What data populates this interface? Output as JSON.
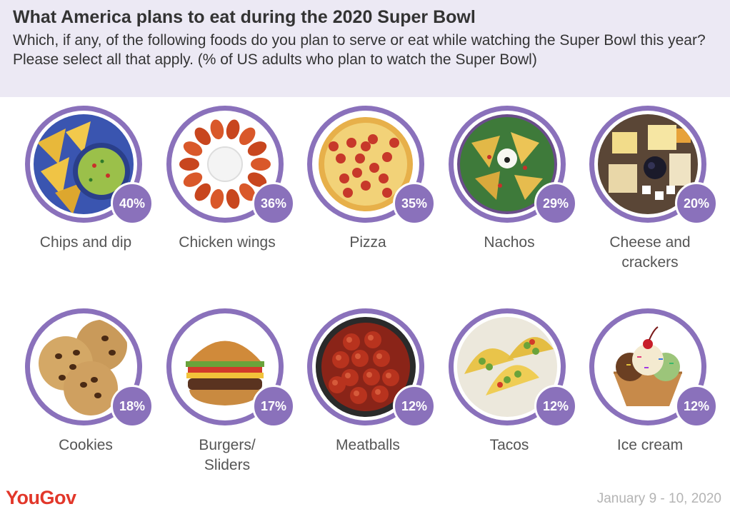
{
  "header": {
    "title": "What America plans to eat during the 2020 Super Bowl",
    "subtitle": "Which, if any, of the following foods do you plan to serve or eat while watching the Super Bowl this year? Please select all that apply. (% of US adults who plan to watch the Super Bowl)"
  },
  "footer": {
    "logo": "YouGov",
    "date": "January 9 - 10, 2020"
  },
  "colors": {
    "accent": "#8a71bb",
    "header_bg": "#ece9f4",
    "logo": "#e2372a"
  },
  "chart_data": {
    "type": "table",
    "title": "What America plans to eat during the 2020 Super Bowl",
    "categories": [
      "Chips and dip",
      "Chicken wings",
      "Pizza",
      "Nachos",
      "Cheese and crackers",
      "Cookies",
      "Burgers/ Sliders",
      "Meatballs",
      "Tacos",
      "Ice cream"
    ],
    "values": [
      40,
      36,
      35,
      29,
      20,
      18,
      17,
      12,
      12,
      12
    ],
    "value_labels": [
      "40%",
      "36%",
      "35%",
      "29%",
      "20%",
      "18%",
      "17%",
      "12%",
      "12%",
      "12%"
    ],
    "icons": [
      "chips-dip-icon",
      "chicken-wings-icon",
      "pizza-icon",
      "nachos-icon",
      "cheese-crackers-icon",
      "cookies-icon",
      "burger-icon",
      "meatballs-icon",
      "tacos-icon",
      "ice-cream-icon"
    ]
  }
}
